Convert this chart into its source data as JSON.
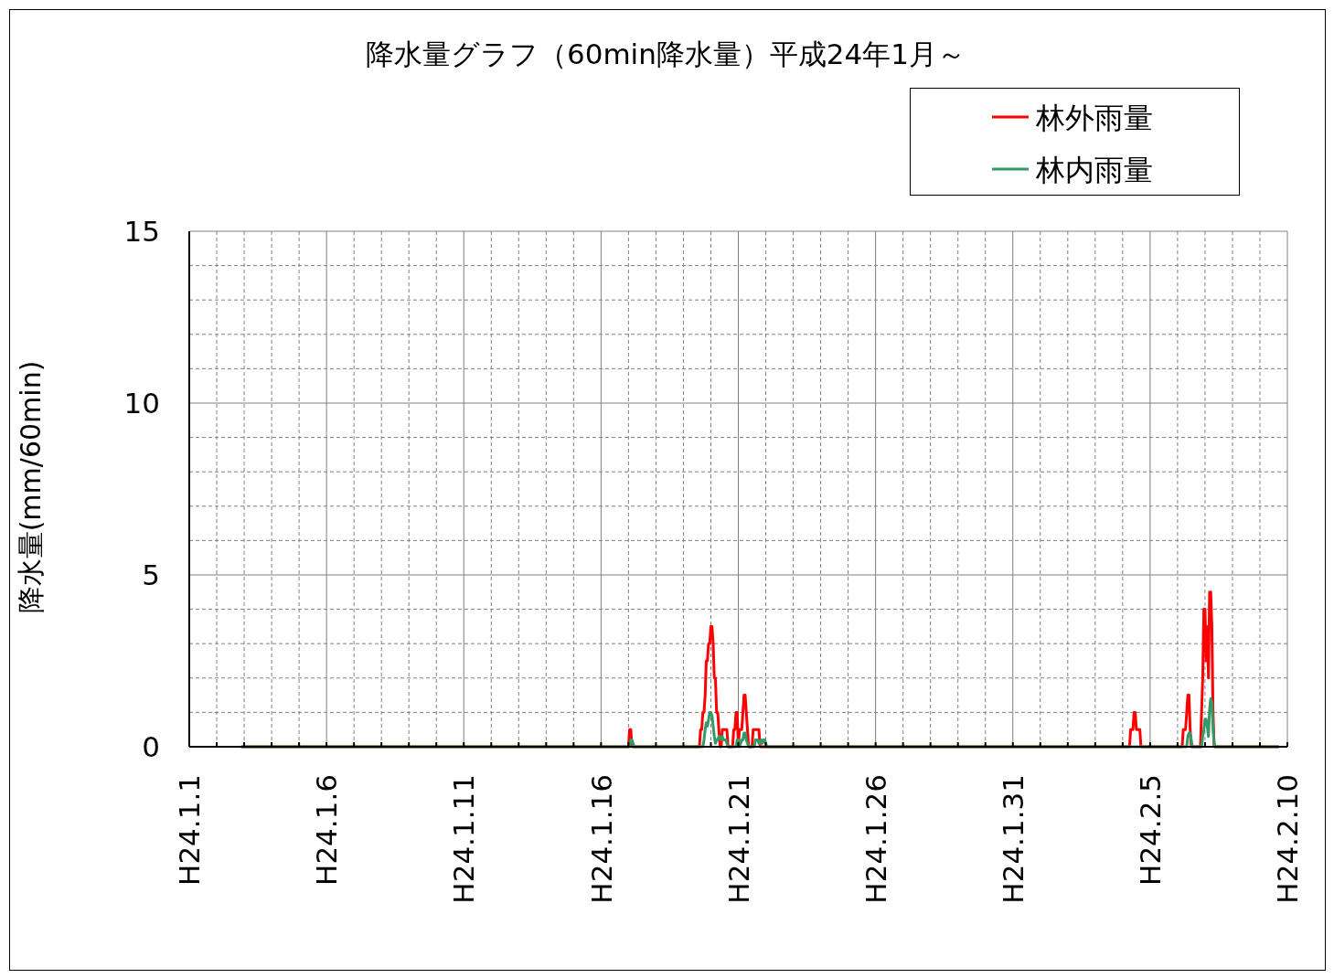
{
  "chart_data": {
    "type": "line",
    "title": "降水量グラフ（60min降水量）平成24年1月～",
    "ylabel": "降水量(mm/60min)",
    "xlim": [
      "--01-01",
      "--02-10"
    ],
    "xticks": [
      {
        "value": "--01-01",
        "label": "H24.1.1"
      },
      {
        "value": "--01-02",
        "label": null
      },
      {
        "value": "--01-03",
        "label": null
      },
      {
        "value": "--01-04",
        "label": null
      },
      {
        "value": "--01-05",
        "label": null
      },
      {
        "value": "--01-06",
        "label": "H24.1.6"
      },
      {
        "value": "--01-07",
        "label": null
      },
      {
        "value": "--01-08",
        "label": null
      },
      {
        "value": "--01-09",
        "label": null
      },
      {
        "value": "--01-10",
        "label": null
      },
      {
        "value": "--01-11",
        "label": "H24.1.11"
      },
      {
        "value": "--01-12",
        "label": null
      },
      {
        "value": "--01-13",
        "label": null
      },
      {
        "value": "--01-14",
        "label": null
      },
      {
        "value": "--01-15",
        "label": null
      },
      {
        "value": "--01-16",
        "label": "H24.1.16"
      },
      {
        "value": "--01-17",
        "label": null
      },
      {
        "value": "--01-18",
        "label": null
      },
      {
        "value": "--01-19",
        "label": null
      },
      {
        "value": "--01-20",
        "label": null
      },
      {
        "value": "--01-21",
        "label": "H24.1.21"
      },
      {
        "value": "--01-22",
        "label": null
      },
      {
        "value": "--01-23",
        "label": null
      },
      {
        "value": "--01-24",
        "label": null
      },
      {
        "value": "--01-25",
        "label": null
      },
      {
        "value": "--01-26",
        "label": "H24.1.26"
      },
      {
        "value": "--01-27",
        "label": null
      },
      {
        "value": "--01-28",
        "label": null
      },
      {
        "value": "--01-29",
        "label": null
      },
      {
        "value": "--01-30",
        "label": null
      },
      {
        "value": "--01-31",
        "label": "H24.1.31"
      },
      {
        "value": "--02-01",
        "label": null
      },
      {
        "value": "--02-02",
        "label": null
      },
      {
        "value": "--02-03",
        "label": null
      },
      {
        "value": "--02-04",
        "label": null
      },
      {
        "value": "--02-05",
        "label": "H24.2.5"
      },
      {
        "value": "--02-06",
        "label": null
      },
      {
        "value": "--02-07",
        "label": null
      },
      {
        "value": "--02-08",
        "label": null
      },
      {
        "value": "--02-09",
        "label": null
      },
      {
        "value": "--02-10",
        "label": "H24.2.10"
      }
    ],
    "ylim": [
      0,
      15
    ],
    "yticks": [
      0,
      {
        "value": 1,
        "label": null
      },
      {
        "value": 2,
        "label": null
      },
      {
        "value": 3,
        "label": null
      },
      {
        "value": 4,
        "label": null
      },
      5,
      {
        "value": 6,
        "label": null
      },
      {
        "value": 7,
        "label": null
      },
      {
        "value": 8,
        "label": null
      },
      {
        "value": 9,
        "label": null
      },
      10,
      {
        "value": 11,
        "label": null
      },
      {
        "value": 12,
        "label": null
      },
      {
        "value": 13,
        "label": null
      },
      {
        "value": 14,
        "label": null
      },
      15
    ],
    "grid": true,
    "legend": "top right",
    "series": [
      {
        "name": "林外雨量",
        "color": "#ff0000",
        "x": [
          "--01-02T22:00",
          "--01-17T00:00",
          "--01-17T01:00",
          "--01-17T02:00",
          "--01-17T03:00",
          "--01-19T14:00",
          "--01-19T15:00",
          "--01-19T16:00",
          "--01-19T17:00",
          "--01-19T18:00",
          "--01-19T19:00",
          "--01-19T20:00",
          "--01-19T21:00",
          "--01-19T22:00",
          "--01-19T23:00",
          "--01-20T00:00",
          "--01-20T01:00",
          "--01-20T02:00",
          "--01-20T03:00",
          "--01-20T04:00",
          "--01-20T05:00",
          "--01-20T06:00",
          "--01-20T07:00",
          "--01-20T08:00",
          "--01-20T09:00",
          "--01-20T10:00",
          "--01-20T11:00",
          "--01-20T12:00",
          "--01-20T13:00",
          "--01-20T14:00",
          "--01-20T15:00",
          "--01-20T19:00",
          "--01-20T20:00",
          "--01-20T21:00",
          "--01-20T22:00",
          "--01-20T23:00",
          "--01-21T00:00",
          "--01-21T01:00",
          "--01-21T02:00",
          "--01-21T03:00",
          "--01-21T04:00",
          "--01-21T05:00",
          "--01-21T06:00",
          "--01-21T07:00",
          "--01-21T08:00",
          "--01-21T09:00",
          "--01-21T12:00",
          "--01-21T13:00",
          "--01-21T14:00",
          "--01-21T15:00",
          "--01-21T16:00",
          "--01-21T17:00",
          "--01-21T18:00",
          "--01-21T19:00",
          "--02-04T06:00",
          "--02-04T07:00",
          "--02-04T08:00",
          "--02-04T09:00",
          "--02-04T10:00",
          "--02-04T11:00",
          "--02-04T12:00",
          "--02-04T13:00",
          "--02-04T14:00",
          "--02-04T15:00",
          "--02-04T16:00",
          "--02-06T04:00",
          "--02-06T05:00",
          "--02-06T06:00",
          "--02-06T07:00",
          "--02-06T08:00",
          "--02-06T09:00",
          "--02-06T10:00",
          "--02-06T11:00",
          "--02-06T12:00",
          "--02-06T20:00",
          "--02-06T21:00",
          "--02-06T22:00",
          "--02-06T23:00",
          "--02-07T00:00",
          "--02-07T01:00",
          "--02-07T02:00",
          "--02-07T03:00",
          "--02-07T04:00",
          "--02-07T05:00",
          "--02-07T06:00",
          "--02-07T07:00",
          "--02-07T08:00",
          "--02-09T16:00"
        ],
        "values": [
          0,
          0,
          0.5,
          0.5,
          0,
          0,
          0.5,
          0.5,
          1,
          1,
          1.5,
          2.5,
          2.5,
          3,
          3,
          3.5,
          3.5,
          3,
          2,
          2,
          1,
          1,
          0.5,
          0,
          0,
          0.5,
          0.5,
          0.5,
          0.5,
          0.5,
          0,
          0,
          0.5,
          0.5,
          1,
          1,
          0,
          0.5,
          0.5,
          0.5,
          1,
          1.5,
          1.5,
          1,
          0.5,
          0,
          0,
          0.5,
          0.5,
          0.5,
          0.5,
          0.5,
          0.5,
          0,
          0,
          0.5,
          0.5,
          0.5,
          1,
          1,
          0.5,
          0.5,
          0.5,
          0.5,
          0,
          0,
          0.5,
          0.5,
          0.5,
          1,
          1.5,
          1.5,
          0.5,
          0,
          0,
          1,
          2,
          4,
          4,
          2.5,
          3.5,
          2,
          4.5,
          4.5,
          3.5,
          1,
          0,
          0
        ]
      },
      {
        "name": "林内雨量",
        "color": "#339966",
        "x": [
          "--01-02T22:00",
          "--01-17T01:00",
          "--01-17T02:00",
          "--01-17T03:00",
          "--01-17T04:00",
          "--01-17T05:00",
          "--01-19T17:00",
          "--01-19T18:00",
          "--01-19T19:00",
          "--01-19T20:00",
          "--01-19T21:00",
          "--01-19T22:00",
          "--01-19T23:00",
          "--01-20T00:00",
          "--01-20T01:00",
          "--01-20T02:00",
          "--01-20T03:00",
          "--01-20T04:00",
          "--01-20T05:00",
          "--01-20T06:00",
          "--01-20T07:00",
          "--01-20T08:00",
          "--01-20T09:00",
          "--01-20T10:00",
          "--01-20T11:00",
          "--01-20T12:00",
          "--01-20T13:00",
          "--01-20T14:00",
          "--01-20T15:00",
          "--01-20T22:00",
          "--01-20T23:00",
          "--01-21T00:00",
          "--01-21T01:00",
          "--01-21T02:00",
          "--01-21T03:00",
          "--01-21T04:00",
          "--01-21T05:00",
          "--01-21T06:00",
          "--01-21T07:00",
          "--01-21T08:00",
          "--01-21T09:00",
          "--01-21T14:00",
          "--01-21T15:00",
          "--01-21T16:00",
          "--01-21T17:00",
          "--01-21T18:00",
          "--01-21T19:00",
          "--01-21T20:00",
          "--01-21T21:00",
          "--01-21T22:00",
          "--01-21T23:00",
          "--01-22T00:00",
          "--01-22T01:00",
          "--02-06T08:00",
          "--02-06T09:00",
          "--02-06T10:00",
          "--02-06T11:00",
          "--02-06T12:00",
          "--02-06T13:00",
          "--02-06T21:00",
          "--02-06T22:00",
          "--02-06T23:00",
          "--02-07T00:00",
          "--02-07T01:00",
          "--02-07T02:00",
          "--02-07T03:00",
          "--02-07T04:00",
          "--02-07T05:00",
          "--02-07T06:00",
          "--02-07T07:00",
          "--02-07T08:00",
          "--02-07T09:00",
          "--02-09T16:00"
        ],
        "values": [
          0,
          0,
          0.2,
          0.2,
          0.1,
          0,
          0,
          0.2,
          0.5,
          0.7,
          0.6,
          0.8,
          1,
          1,
          0.9,
          0.6,
          0.3,
          0.1,
          0.2,
          0.2,
          0.3,
          0.3,
          0.2,
          0.3,
          0.2,
          0.2,
          0.2,
          0.1,
          0,
          0,
          0.2,
          0.2,
          0,
          0.1,
          0.2,
          0.2,
          0.4,
          0.4,
          0.2,
          0.1,
          0,
          0,
          0.2,
          0.2,
          0.2,
          0.1,
          0.1,
          0.2,
          0.1,
          0.2,
          0.2,
          0.1,
          0,
          0,
          0.3,
          0.4,
          0.4,
          0.2,
          0,
          0,
          0.3,
          0.5,
          0.8,
          0.8,
          0.6,
          0.3,
          1.1,
          1.4,
          1.3,
          0.5,
          0.1,
          0,
          0
        ]
      }
    ]
  }
}
